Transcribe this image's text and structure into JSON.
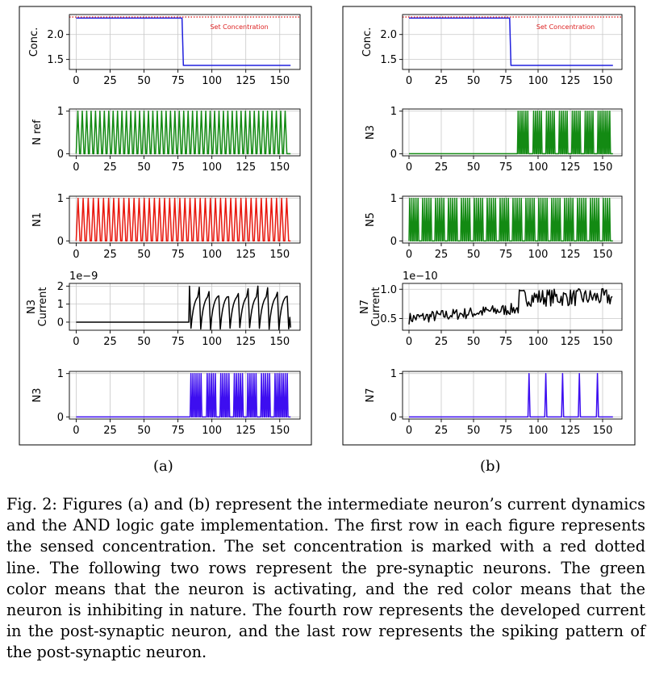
{
  "panels": [
    {
      "label": "(a)"
    },
    {
      "label": "(b)"
    }
  ],
  "caption": "Fig. 2: Figures (a) and (b) represent the intermediate neuron’s current dynamics and the AND logic gate implementation. The first row in each figure represents the sensed concentration. The set concentration is marked with a red dotted line. The following two rows represent the pre-synaptic neurons. The green color means that the neuron is activating, and the red color means that the neuron is inhibiting in nature. The fourth row represents the developed current in the post-synaptic neuron, and the last row represents the spiking pattern of the post-synaptic neuron.",
  "chart_data": [
    {
      "panel": "a",
      "row": 1,
      "type": "line",
      "ylabel": "Conc.",
      "xlim": [
        -5,
        165
      ],
      "ylim": [
        1.3,
        2.4
      ],
      "xticks": [
        0,
        25,
        50,
        75,
        100,
        125,
        150
      ],
      "yticks": [
        1.5,
        2.0
      ],
      "ytick_labels": [
        "1.5",
        "2.0"
      ],
      "series": [
        {
          "name": "sensed",
          "color": "#2020dd",
          "kind": "step",
          "x": [
            0,
            78,
            79,
            158
          ],
          "y": [
            2.33,
            2.33,
            1.38,
            1.38
          ]
        },
        {
          "name": "Set Concentration",
          "color": "#dd2222",
          "kind": "dotted",
          "x": [
            -5,
            165
          ],
          "y": [
            2.35,
            2.35
          ]
        }
      ],
      "annotation": "Set Concentration"
    },
    {
      "panel": "a",
      "row": 2,
      "type": "line",
      "ylabel": "N ref",
      "xlim": [
        -5,
        165
      ],
      "ylim": [
        -0.05,
        1.05
      ],
      "xticks": [
        0,
        25,
        50,
        75,
        100,
        125,
        150
      ],
      "yticks": [
        0,
        1
      ],
      "ytick_labels": [
        "0",
        "1"
      ],
      "series": [
        {
          "name": "N ref",
          "color": "#138a13",
          "kind": "spikes",
          "start": 0,
          "end": 158,
          "period": 3.25,
          "width": 2.5
        }
      ]
    },
    {
      "panel": "a",
      "row": 3,
      "type": "line",
      "ylabel": "N1",
      "xlim": [
        -5,
        165
      ],
      "ylim": [
        -0.05,
        1.05
      ],
      "xticks": [
        0,
        25,
        50,
        75,
        100,
        125,
        150
      ],
      "yticks": [
        0,
        1
      ],
      "ytick_labels": [
        "0",
        "1"
      ],
      "series": [
        {
          "name": "N1",
          "color": "#e8160c",
          "kind": "spikes",
          "start": 0,
          "end": 158,
          "period": 3.75,
          "width": 2.8
        }
      ]
    },
    {
      "panel": "a",
      "row": 4,
      "type": "line",
      "ylabel": "N3 Current",
      "exponent": "1e−9",
      "xlim": [
        -5,
        165
      ],
      "ylim": [
        -0.45,
        2.15
      ],
      "xticks": [
        0,
        25,
        50,
        75,
        100,
        125,
        150
      ],
      "yticks": [
        0,
        1,
        2
      ],
      "ytick_labels": [
        "0",
        "1",
        "2"
      ],
      "series": [
        {
          "name": "N3 current",
          "color": "#000000",
          "kind": "sawtooth",
          "flat_until": 83,
          "end": 158,
          "period": 7.2,
          "peak": 2.0,
          "low": -0.35,
          "tau": 2.2
        }
      ]
    },
    {
      "panel": "a",
      "row": 5,
      "type": "line",
      "ylabel": "N3",
      "xlim": [
        -5,
        165
      ],
      "ylim": [
        -0.05,
        1.05
      ],
      "xticks": [
        0,
        25,
        50,
        75,
        100,
        125,
        150
      ],
      "yticks": [
        0,
        1
      ],
      "ytick_labels": [
        "0",
        "1"
      ],
      "series": [
        {
          "name": "N3",
          "color": "#3d0ef0",
          "kind": "bursts",
          "period": 1.5,
          "width": 1.1,
          "bursts": [
            [
              84,
              93
            ],
            [
              96,
              104
            ],
            [
              106,
              114
            ],
            [
              116,
              124
            ],
            [
              126,
              134
            ],
            [
              136,
              144
            ],
            [
              146,
              157
            ]
          ]
        }
      ]
    },
    {
      "panel": "b",
      "row": 1,
      "type": "line",
      "ylabel": "Conc.",
      "xlim": [
        -5,
        165
      ],
      "ylim": [
        1.3,
        2.4
      ],
      "xticks": [
        0,
        25,
        50,
        75,
        100,
        125,
        150
      ],
      "yticks": [
        1.5,
        2.0
      ],
      "ytick_labels": [
        "1.5",
        "2.0"
      ],
      "series": [
        {
          "name": "sensed",
          "color": "#2020dd",
          "kind": "step",
          "x": [
            0,
            78,
            79,
            158
          ],
          "y": [
            2.33,
            2.33,
            1.38,
            1.38
          ]
        },
        {
          "name": "Set Concentration",
          "color": "#dd2222",
          "kind": "dotted",
          "x": [
            -5,
            165
          ],
          "y": [
            2.35,
            2.35
          ]
        }
      ],
      "annotation": "Set Concentration"
    },
    {
      "panel": "b",
      "row": 2,
      "type": "line",
      "ylabel": "N3",
      "xlim": [
        -5,
        165
      ],
      "ylim": [
        -0.05,
        1.05
      ],
      "xticks": [
        0,
        25,
        50,
        75,
        100,
        125,
        150
      ],
      "yticks": [
        0,
        1
      ],
      "ytick_labels": [
        "0",
        "1"
      ],
      "series": [
        {
          "name": "N3",
          "color": "#138a13",
          "kind": "bursts",
          "period": 1.5,
          "width": 1.1,
          "bursts": [
            [
              84,
              93
            ],
            [
              96,
              104
            ],
            [
              106,
              114
            ],
            [
              116,
              124
            ],
            [
              126,
              134
            ],
            [
              136,
              144
            ],
            [
              146,
              157
            ]
          ]
        }
      ]
    },
    {
      "panel": "b",
      "row": 3,
      "type": "line",
      "ylabel": "N5",
      "xlim": [
        -5,
        165
      ],
      "ylim": [
        -0.05,
        1.05
      ],
      "xticks": [
        0,
        25,
        50,
        75,
        100,
        125,
        150
      ],
      "yticks": [
        0,
        1
      ],
      "ytick_labels": [
        "0",
        "1"
      ],
      "series": [
        {
          "name": "N5",
          "color": "#138a13",
          "kind": "bursts",
          "period": 1.6,
          "width": 1.2,
          "bursts": [
            [
              0,
              8
            ],
            [
              10,
              18
            ],
            [
              20,
              28
            ],
            [
              30,
              38
            ],
            [
              40,
              48
            ],
            [
              50,
              58
            ],
            [
              60,
              68
            ],
            [
              70,
              78
            ],
            [
              80,
              88
            ],
            [
              90,
              98
            ],
            [
              100,
              108
            ],
            [
              110,
              118
            ],
            [
              120,
              128
            ],
            [
              130,
              138
            ],
            [
              140,
              148
            ],
            [
              150,
              157
            ]
          ]
        }
      ]
    },
    {
      "panel": "b",
      "row": 4,
      "type": "line",
      "ylabel": "N7 Current",
      "exponent": "1e−10",
      "xlim": [
        -5,
        165
      ],
      "ylim": [
        0.3,
        1.1
      ],
      "xticks": [
        0,
        25,
        50,
        75,
        100,
        125,
        150
      ],
      "yticks": [
        0.5,
        1.0
      ],
      "ytick_labels": [
        "0.5",
        "1.0"
      ],
      "series": [
        {
          "name": "N7 current",
          "color": "#000000",
          "kind": "noisy",
          "start": 0,
          "end": 158,
          "step": 0.9,
          "base1": 0.5,
          "amp1": 0.1,
          "switch": 85,
          "base2": 0.8,
          "amp2": 0.15,
          "peak2": 1.03
        }
      ]
    },
    {
      "panel": "b",
      "row": 5,
      "type": "line",
      "ylabel": "N7",
      "xlim": [
        -5,
        165
      ],
      "ylim": [
        -0.05,
        1.05
      ],
      "xticks": [
        0,
        25,
        50,
        75,
        100,
        125,
        150
      ],
      "yticks": [
        0,
        1
      ],
      "ytick_labels": [
        "0",
        "1"
      ],
      "series": [
        {
          "name": "N7",
          "color": "#3d0ef0",
          "kind": "spike_list",
          "width": 1.6,
          "spikes": [
            93,
            106,
            119,
            132,
            146
          ]
        }
      ]
    }
  ]
}
